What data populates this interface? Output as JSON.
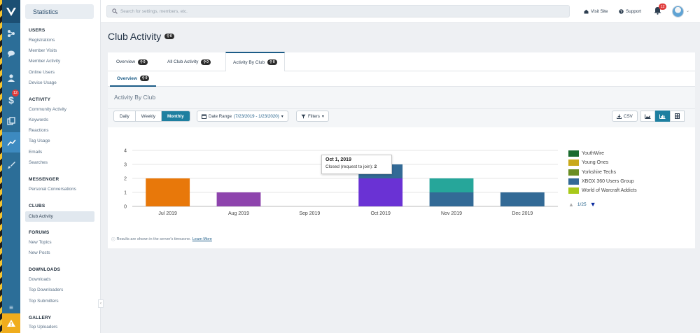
{
  "app": {
    "logo": "logo-mark"
  },
  "rail": {
    "icons": [
      "nodes-icon",
      "chat-icon",
      "user-icon",
      "dollar-icon",
      "copy-icon",
      "chart-icon",
      "brush-icon"
    ],
    "dollar_badge": "12"
  },
  "sidebar": {
    "title": "Statistics",
    "sections": [
      {
        "heading": "USERS",
        "items": [
          "Registrations",
          "Member Visits",
          "Member Activity",
          "Online Users",
          "Device Usage"
        ]
      },
      {
        "heading": "ACTIVITY",
        "items": [
          "Community Activity",
          "Keywords",
          "Reactions",
          "Tag Usage",
          "Emails",
          "Searches"
        ]
      },
      {
        "heading": "MESSENGER",
        "items": [
          "Personal Conversations"
        ]
      },
      {
        "heading": "CLUBS",
        "items": [
          "Club Activity"
        ]
      },
      {
        "heading": "FORUMS",
        "items": [
          "New Topics",
          "New Posts"
        ]
      },
      {
        "heading": "DOWNLOADS",
        "items": [
          "Downloads",
          "Top Downloaders",
          "Top Submitters"
        ]
      },
      {
        "heading": "GALLERY",
        "items": [
          "Top Uploaders"
        ]
      }
    ],
    "active_item": "Club Activity"
  },
  "topbar": {
    "search_placeholder": "Search for settings, members, etc.",
    "visit_site": "Visit Site",
    "support": "Support",
    "notifications_count": "12"
  },
  "page": {
    "title": "Club Activity",
    "title_badge": "0",
    "tabs": [
      {
        "label": "Overview",
        "badge": "0"
      },
      {
        "label": "All Club Activity",
        "badge": "0"
      },
      {
        "label": "Activity By Club",
        "badge": "0",
        "active": true
      }
    ],
    "subtab": {
      "label": "Overview",
      "badge": "0"
    },
    "panel_title": "Activity By Club",
    "intervals": [
      "Daily",
      "Weekly",
      "Monthly"
    ],
    "active_interval": "Monthly",
    "date_range_label": "Date Range",
    "date_range_value": "(7/23/2019 - 1/23/2020)",
    "filters_label": "Filters",
    "csv_label": "CSV",
    "note_text": "Results are shown in the server's timezone.",
    "note_link": "Learn More"
  },
  "tooltip": {
    "title": "Oct 1, 2019",
    "label": "Closed (request to join):",
    "value": "2"
  },
  "legend_pager": "1/25",
  "colors": {
    "rail": "#2c6e98",
    "accent": "#1e7fa0",
    "orange": "#e8780a",
    "purple": "#8e44ad",
    "violet": "#6a32d4",
    "teal": "#26a69a",
    "steel": "#336a96"
  },
  "chart_data": {
    "type": "bar",
    "stacked": true,
    "categories": [
      "Jul 2019",
      "Aug 2019",
      "Sep 2019",
      "Oct 2019",
      "Nov 2019",
      "Dec 2019"
    ],
    "ylim": [
      0,
      4
    ],
    "yticks": [
      0,
      1,
      2,
      3,
      4
    ],
    "grid": true,
    "legend_position": "right",
    "segments": [
      {
        "category": "Jul 2019",
        "value": 2,
        "color": "#e8780a"
      },
      {
        "category": "Aug 2019",
        "value": 1,
        "color": "#8e44ad"
      },
      {
        "category": "Oct 2019",
        "value": 2,
        "color": "#6a32d4"
      },
      {
        "category": "Oct 2019",
        "value": 1,
        "color": "#336a96"
      },
      {
        "category": "Nov 2019",
        "value": 1,
        "color": "#336a96"
      },
      {
        "category": "Nov 2019",
        "value": 1,
        "color": "#26a69a"
      },
      {
        "category": "Dec 2019",
        "value": 1,
        "color": "#336a96"
      }
    ],
    "legend": [
      {
        "name": "YouthWire",
        "color": "#1a6b2e"
      },
      {
        "name": "Young Ones",
        "color": "#c9a91a"
      },
      {
        "name": "Yorkshire Techs",
        "color": "#6b8e23"
      },
      {
        "name": "XBOX 360 Users Group",
        "color": "#336a96"
      },
      {
        "name": "World of Warcraft Addicts",
        "color": "#a8c91a"
      }
    ]
  }
}
